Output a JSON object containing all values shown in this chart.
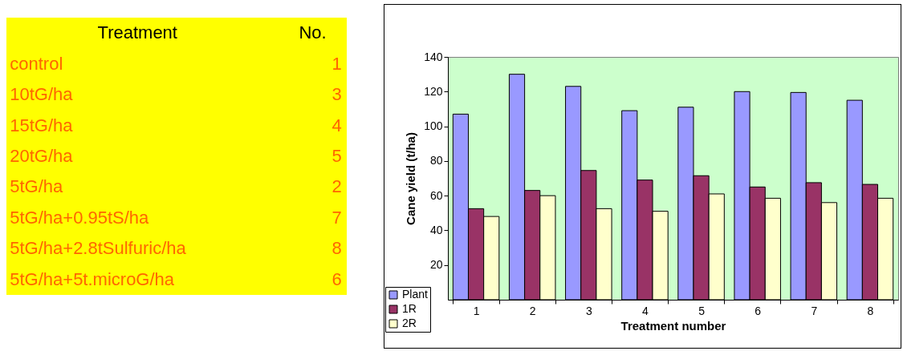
{
  "chart_data": [
    {
      "type": "other",
      "xlabel": "Treatment",
      "ylabel": "No.",
      "categories": [
        "control",
        "10tG/ha",
        "15tG/ha",
        "20tG/ha",
        "5tG/ha",
        "5tG/ha+0.95tS/ha",
        "5tG/ha+2.8tSulfuric/ha",
        "5tG/ha+5t.microG/ha"
      ],
      "values": [
        1,
        3,
        4,
        5,
        2,
        7,
        8,
        6
      ],
      "data_labels": true
    },
    {
      "type": "bar",
      "xlabel": "Treatment number",
      "ylabel": "Cane yield (t/ha)",
      "categories": [
        "1",
        "2",
        "3",
        "4",
        "5",
        "6",
        "7",
        "8"
      ],
      "series": [
        {
          "name": "Plant",
          "color": "#9999ff",
          "values": [
            107,
            130,
            123,
            109,
            111,
            120,
            119.5,
            115
          ]
        },
        {
          "name": "1R",
          "color": "#993366",
          "values": [
            52.5,
            63,
            74.5,
            69,
            71.5,
            65,
            67.5,
            66.5
          ]
        },
        {
          "name": "2R",
          "color": "#ffffcc",
          "values": [
            48,
            60,
            52.5,
            51,
            61,
            58.5,
            56,
            58.5
          ]
        }
      ],
      "ylim": [
        0,
        140
      ],
      "yticks": [
        20,
        40,
        60,
        80,
        100,
        120,
        140
      ],
      "grid": false,
      "legend": "bottom left"
    }
  ]
}
